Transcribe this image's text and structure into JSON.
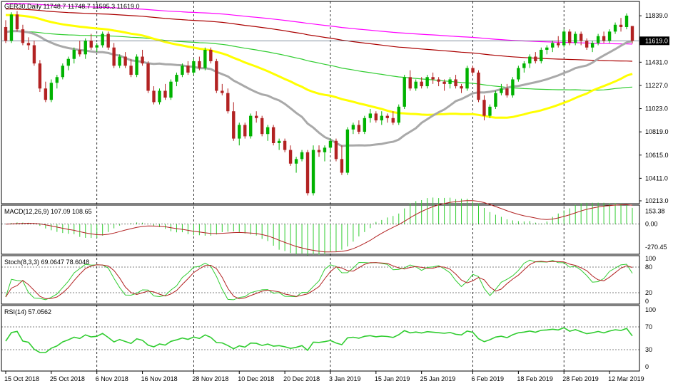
{
  "chart_data": [
    {
      "type": "candlestick",
      "title": "GER30,Daily  11748.7  11748.7  11595.3  11619.0",
      "ylim": [
        10213,
        11940
      ],
      "y_ticks": [
        "11839.0",
        "11431.0",
        "11227.0",
        "11023.0",
        "10819.0",
        "10615.0",
        "10411.0",
        "10213.0"
      ],
      "y_tick_values": [
        11839,
        11431,
        11227,
        11023,
        10819,
        10615,
        10411,
        10213
      ],
      "current_price": "11619.0",
      "current_price_value": 11619,
      "x_labels": [
        "15 Oct 2018",
        "25 Oct 2018",
        "6 Nov 2018",
        "16 Nov 2018",
        "28 Nov 2018",
        "10 Dec 2018",
        "20 Dec 2018",
        "3 Jan 2019",
        "15 Jan 2019",
        "25 Jan 2019",
        "6 Feb 2019",
        "18 Feb 2019",
        "28 Feb 2019",
        "12 Mar 2019"
      ],
      "candles": [
        [
          11740,
          11800,
          11600,
          11620
        ],
        [
          11620,
          11870,
          11600,
          11850
        ],
        [
          11850,
          11880,
          11700,
          11720
        ],
        [
          11720,
          11760,
          11580,
          11600
        ],
        [
          11600,
          11650,
          11540,
          11580
        ],
        [
          11580,
          11620,
          11400,
          11420
        ],
        [
          11420,
          11450,
          11170,
          11200
        ],
        [
          11200,
          11260,
          11080,
          11100
        ],
        [
          11100,
          11280,
          11080,
          11250
        ],
        [
          11250,
          11320,
          11200,
          11300
        ],
        [
          11300,
          11420,
          11280,
          11400
        ],
        [
          11400,
          11480,
          11360,
          11460
        ],
        [
          11460,
          11560,
          11420,
          11540
        ],
        [
          11540,
          11620,
          11480,
          11500
        ],
        [
          11500,
          11640,
          11460,
          11620
        ],
        [
          11620,
          11680,
          11540,
          11560
        ],
        [
          11560,
          11600,
          11520,
          11580
        ],
        [
          11580,
          11700,
          11560,
          11680
        ],
        [
          11680,
          11700,
          11540,
          11560
        ],
        [
          11560,
          11600,
          11380,
          11400
        ],
        [
          11400,
          11500,
          11380,
          11480
        ],
        [
          11480,
          11520,
          11380,
          11400
        ],
        [
          11400,
          11460,
          11300,
          11320
        ],
        [
          11320,
          11500,
          11300,
          11480
        ],
        [
          11480,
          11540,
          11400,
          11420
        ],
        [
          11420,
          11440,
          11160,
          11180
        ],
        [
          11180,
          11220,
          11060,
          11080
        ],
        [
          11080,
          11200,
          11060,
          11180
        ],
        [
          11180,
          11240,
          11100,
          11120
        ],
        [
          11120,
          11280,
          11100,
          11260
        ],
        [
          11260,
          11340,
          11220,
          11320
        ],
        [
          11320,
          11420,
          11300,
          11400
        ],
        [
          11400,
          11440,
          11320,
          11340
        ],
        [
          11340,
          11460,
          11320,
          11440
        ],
        [
          11440,
          11480,
          11360,
          11380
        ],
        [
          11380,
          11560,
          11360,
          11540
        ],
        [
          11540,
          11560,
          11420,
          11440
        ],
        [
          11440,
          11460,
          11160,
          11180
        ],
        [
          11180,
          11240,
          11140,
          11160
        ],
        [
          11160,
          11200,
          10980,
          11000
        ],
        [
          11000,
          11080,
          10740,
          10760
        ],
        [
          10760,
          10900,
          10700,
          10880
        ],
        [
          10880,
          10900,
          10760,
          10780
        ],
        [
          10780,
          10980,
          10760,
          10960
        ],
        [
          10960,
          11000,
          10900,
          10940
        ],
        [
          10940,
          10960,
          10780,
          10800
        ],
        [
          10800,
          10880,
          10740,
          10860
        ],
        [
          10860,
          10880,
          10700,
          10720
        ],
        [
          10720,
          10760,
          10660,
          10740
        ],
        [
          10740,
          10760,
          10640,
          10660
        ],
        [
          10660,
          10700,
          10520,
          10540
        ],
        [
          10540,
          10600,
          10460,
          10580
        ],
        [
          10580,
          10660,
          10560,
          10640
        ],
        [
          10640,
          10660,
          10260,
          10280
        ],
        [
          10280,
          10700,
          10260,
          10660
        ],
        [
          10660,
          10700,
          10600,
          10640
        ],
        [
          10640,
          10700,
          10560,
          10680
        ],
        [
          10680,
          10760,
          10640,
          10740
        ],
        [
          10740,
          10760,
          10560,
          10580
        ],
        [
          10580,
          10700,
          10440,
          10460
        ],
        [
          10460,
          10860,
          10440,
          10840
        ],
        [
          10840,
          10900,
          10800,
          10880
        ],
        [
          10880,
          10920,
          10800,
          10820
        ],
        [
          10820,
          10960,
          10800,
          10940
        ],
        [
          10940,
          11020,
          10900,
          10980
        ],
        [
          10980,
          11000,
          10900,
          10920
        ],
        [
          10920,
          11000,
          10880,
          10960
        ],
        [
          10960,
          10980,
          10900,
          10940
        ],
        [
          10940,
          11000,
          10880,
          10900
        ],
        [
          10900,
          11060,
          10880,
          11040
        ],
        [
          11040,
          11320,
          11020,
          11300
        ],
        [
          11300,
          11360,
          11180,
          11200
        ],
        [
          11200,
          11280,
          11180,
          11260
        ],
        [
          11260,
          11300,
          11200,
          11220
        ],
        [
          11220,
          11320,
          11200,
          11300
        ],
        [
          11300,
          11340,
          11240,
          11280
        ],
        [
          11280,
          11300,
          11220,
          11260
        ],
        [
          11260,
          11280,
          11180,
          11240
        ],
        [
          11240,
          11300,
          11200,
          11280
        ],
        [
          11280,
          11320,
          11200,
          11220
        ],
        [
          11220,
          11240,
          11160,
          11200
        ],
        [
          11200,
          11400,
          11180,
          11380
        ],
        [
          11380,
          11400,
          11320,
          11340
        ],
        [
          11340,
          11360,
          11080,
          11100
        ],
        [
          11100,
          11140,
          10920,
          10960
        ],
        [
          10960,
          11060,
          10940,
          11040
        ],
        [
          11040,
          11180,
          11020,
          11160
        ],
        [
          11160,
          11240,
          11140,
          11200
        ],
        [
          11200,
          11240,
          11120,
          11140
        ],
        [
          11140,
          11300,
          11120,
          11280
        ],
        [
          11280,
          11400,
          11260,
          11380
        ],
        [
          11380,
          11440,
          11340,
          11420
        ],
        [
          11420,
          11500,
          11380,
          11480
        ],
        [
          11480,
          11520,
          11420,
          11440
        ],
        [
          11440,
          11560,
          11420,
          11540
        ],
        [
          11540,
          11580,
          11500,
          11560
        ],
        [
          11560,
          11620,
          11520,
          11600
        ],
        [
          11600,
          11660,
          11560,
          11580
        ],
        [
          11580,
          11720,
          11560,
          11700
        ],
        [
          11700,
          11720,
          11580,
          11600
        ],
        [
          11600,
          11700,
          11580,
          11680
        ],
        [
          11680,
          11700,
          11580,
          11620
        ],
        [
          11620,
          11640,
          11540,
          11560
        ],
        [
          11560,
          11620,
          11520,
          11600
        ],
        [
          11600,
          11680,
          11580,
          11660
        ],
        [
          11660,
          11700,
          11600,
          11620
        ],
        [
          11620,
          11720,
          11600,
          11700
        ],
        [
          11700,
          11780,
          11680,
          11760
        ],
        [
          11760,
          11820,
          11700,
          11740
        ],
        [
          11740,
          11860,
          11720,
          11840
        ],
        [
          11749,
          11749,
          11595,
          11619
        ]
      ],
      "moving_averages": [
        {
          "color": "#ff00ff",
          "label": "MA magenta"
        },
        {
          "color": "#aa0000",
          "label": "MA red"
        },
        {
          "color": "#32cd32",
          "label": "MA green"
        },
        {
          "color": "#ffff00",
          "label": "MA yellow"
        },
        {
          "color": "#a9a9a9",
          "label": "MA gray"
        }
      ],
      "colors": {
        "up": "#00b200",
        "down": "#b22222",
        "grid": "#000000"
      }
    },
    {
      "type": "macd",
      "title": "MACD(12,26,9) 107.09 108.65",
      "y_ticks": [
        "153.38",
        "0.00",
        "-270.45"
      ],
      "y_tick_values": [
        153.38,
        0,
        -270.45
      ],
      "ylim": [
        -320,
        190
      ]
    },
    {
      "type": "stochastic",
      "title": "Stoch(8,3,3) 69.0647 78.6048",
      "y_ticks": [
        "100",
        "80",
        "20",
        "0"
      ],
      "y_tick_values": [
        100,
        80,
        20,
        0
      ],
      "ylim": [
        0,
        100
      ]
    },
    {
      "type": "rsi",
      "title": "RSI(14) 57.0562",
      "y_ticks": [
        "100",
        "70",
        "30",
        "0"
      ],
      "y_tick_values": [
        100,
        70,
        30,
        0
      ],
      "ylim": [
        0,
        100
      ]
    }
  ]
}
